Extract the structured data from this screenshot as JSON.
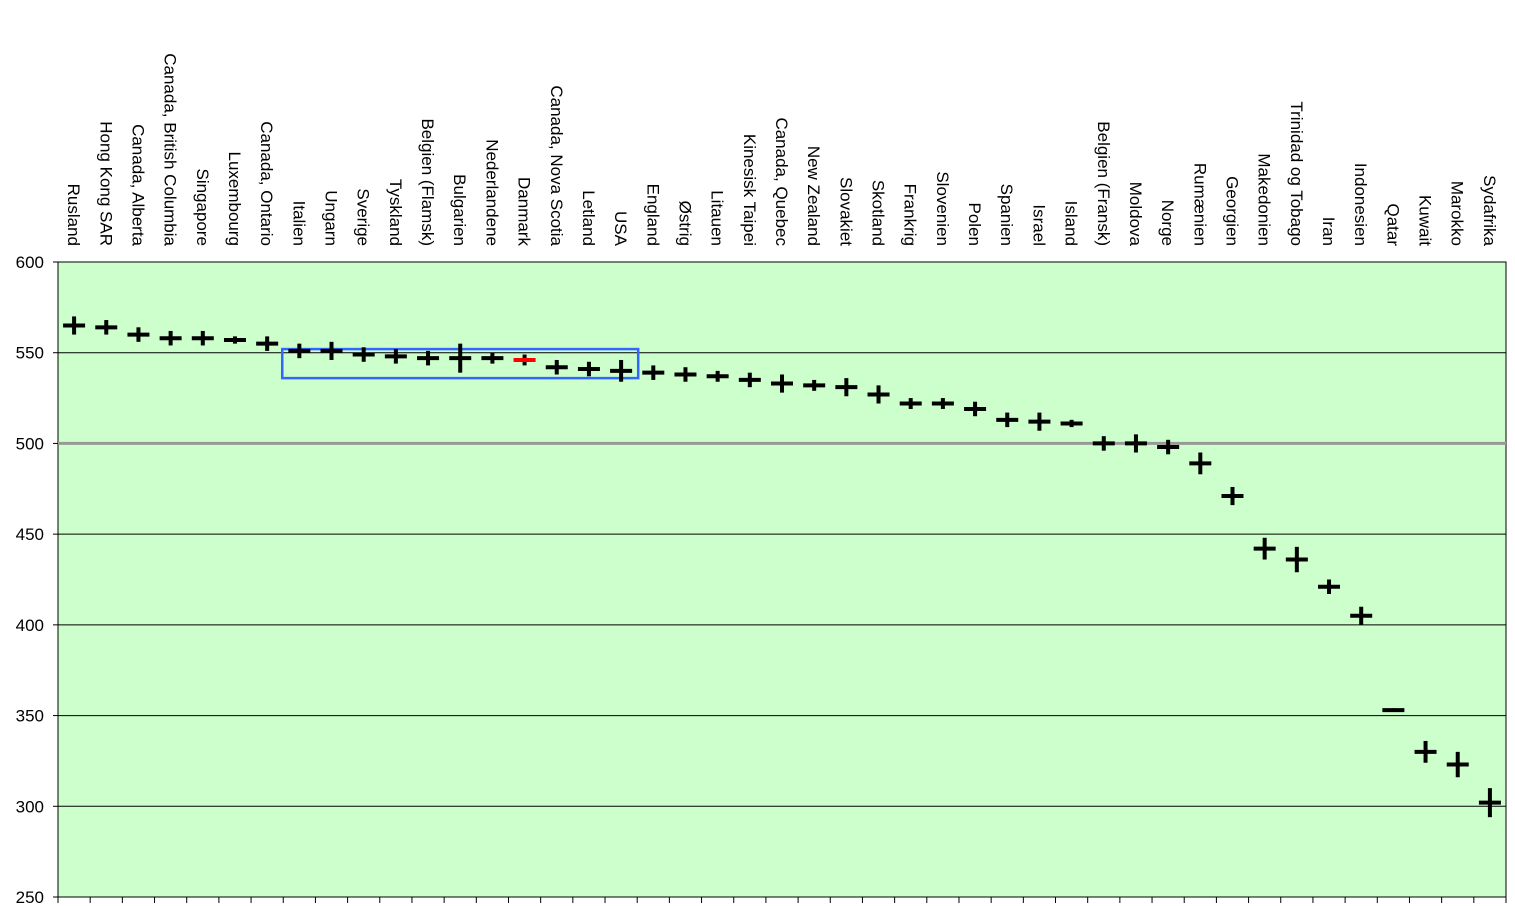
{
  "chart_data": {
    "type": "scatter",
    "title": "",
    "xlabel": "",
    "ylabel": "",
    "ylim": [
      250,
      600
    ],
    "yticks": [
      250,
      300,
      350,
      400,
      450,
      500,
      550,
      600
    ],
    "grid": true,
    "reference_line": 500,
    "highlight_category": "Danmark",
    "highlight_group": [
      "Italien",
      "Ungarn",
      "Sverige",
      "Tyskland",
      "Belgien (Flamsk)",
      "Bulgarien",
      "Nederlandene",
      "Danmark",
      "Canada, Nova Scotia",
      "Letland",
      "USA"
    ],
    "colors": {
      "plot_background": "#ccffcc",
      "marker": "#000000",
      "highlight_marker": "#ff0000",
      "highlight_box": "#3366ff",
      "reference_line": "#999999"
    },
    "series": [
      {
        "categories": [
          "Rusland",
          "Hong Kong SAR",
          "Canada, Alberta",
          "Canada, British Columbia",
          "Singapore",
          "Luxembourg",
          "Canada, Ontario",
          "Italien",
          "Ungarn",
          "Sverige",
          "Tyskland",
          "Belgien (Flamsk)",
          "Bulgarien",
          "Nederlandene",
          "Danmark",
          "Canada, Nova Scotia",
          "Letland",
          "USA",
          "England",
          "Østrig",
          "Litauen",
          "Kinesisk Taipei",
          "Canada, Quebec",
          "New Zealand",
          "Slovakiet",
          "Skotland",
          "Frankrig",
          "Slovenien",
          "Polen",
          "Spanien",
          "Israel",
          "Island",
          "Belgien (Fransk)",
          "Moldova",
          "Norge",
          "Rumænien",
          "Georgien",
          "Makedonien",
          "Trinidad og Tobago",
          "Iran",
          "Indonesien",
          "Qatar",
          "Kuwait",
          "Marokko",
          "Sydafrika"
        ],
        "values": [
          565,
          564,
          560,
          558,
          558,
          557,
          555,
          551,
          551,
          549,
          548,
          547,
          547,
          547,
          546,
          542,
          541,
          540,
          539,
          538,
          537,
          535,
          533,
          532,
          531,
          527,
          522,
          522,
          519,
          513,
          512,
          511,
          500,
          500,
          498,
          489,
          471,
          442,
          436,
          421,
          405,
          353,
          330,
          323,
          302
        ],
        "error": [
          5,
          4,
          4,
          4,
          4,
          2,
          4,
          4,
          5,
          4,
          4,
          4,
          8,
          3,
          3,
          4,
          4,
          6,
          4,
          4,
          3,
          4,
          5,
          3,
          5,
          5,
          3,
          3,
          4,
          4,
          5,
          2,
          4,
          5,
          4,
          6,
          5,
          6,
          7,
          4,
          5,
          1,
          6,
          7,
          8
        ]
      }
    ]
  }
}
